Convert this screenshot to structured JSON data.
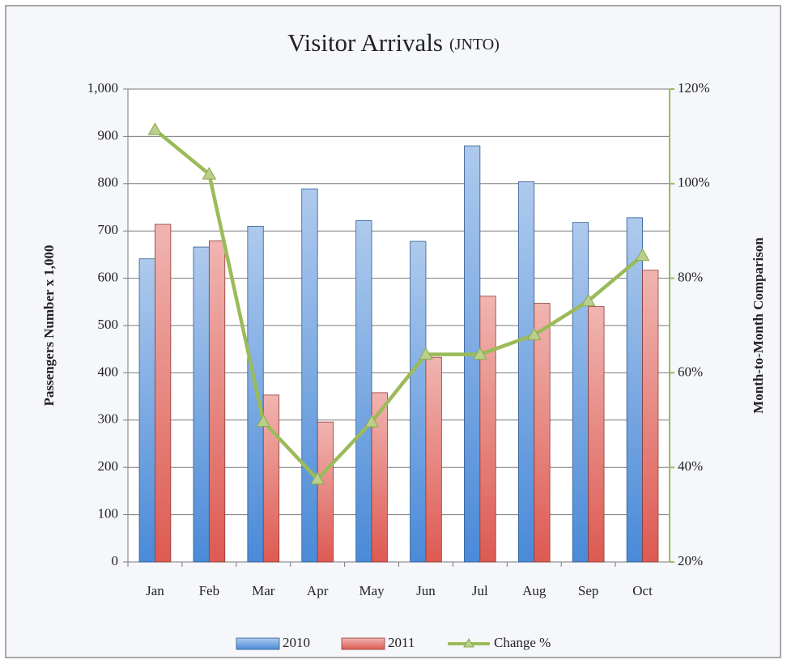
{
  "chart_data": {
    "type": "bar",
    "title": "Visitor Arrivals",
    "subtitle": "(JNTO)",
    "y_label": "Passengers Number  x 1,000",
    "y2_label": "Month-to-Month Comparison",
    "categories": [
      "Jan",
      "Feb",
      "Mar",
      "Apr",
      "May",
      "Jun",
      "Jul",
      "Aug",
      "Sep",
      "Oct"
    ],
    "series": [
      {
        "name": "2010",
        "type": "bar",
        "color": "#4a8ad8",
        "values": [
          641,
          666,
          710,
          789,
          722,
          678,
          880,
          804,
          718,
          728
        ]
      },
      {
        "name": "2011",
        "type": "bar",
        "color": "#dd5a52",
        "values": [
          714,
          679,
          353,
          296,
          358,
          433,
          562,
          547,
          540,
          617
        ]
      },
      {
        "name": "Change %",
        "type": "line",
        "axis": "y2",
        "color": "#9bbb59",
        "values": [
          111.4,
          102,
          49.7,
          37.5,
          49.6,
          63.9,
          63.9,
          68,
          75.2,
          84.8
        ]
      }
    ],
    "ylim": [
      0,
      1000
    ],
    "yticks": [
      0,
      100,
      200,
      300,
      400,
      500,
      600,
      700,
      800,
      900,
      {
        "value": 1000,
        "label": "1,000"
      }
    ],
    "y2lim": [
      20,
      120
    ],
    "y2ticks": [
      {
        "value": 20,
        "label": "20%"
      },
      {
        "value": 40,
        "label": "40%"
      },
      {
        "value": 60,
        "label": "60%"
      },
      {
        "value": 80,
        "label": "80%"
      },
      {
        "value": 100,
        "label": "100%"
      },
      {
        "value": 120,
        "label": "120%"
      }
    ],
    "grid": true,
    "legend": "bottom"
  }
}
